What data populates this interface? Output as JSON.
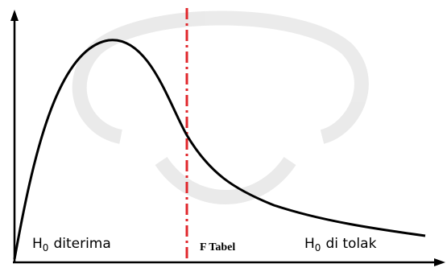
{
  "labels": [
    {
      "base": "H",
      "subscript": "0",
      "text": "diterima"
    },
    {
      "text": "F Tabel"
    },
    {
      "base": "H",
      "subscript": "0",
      "text": "di tolak"
    }
  ]
}
